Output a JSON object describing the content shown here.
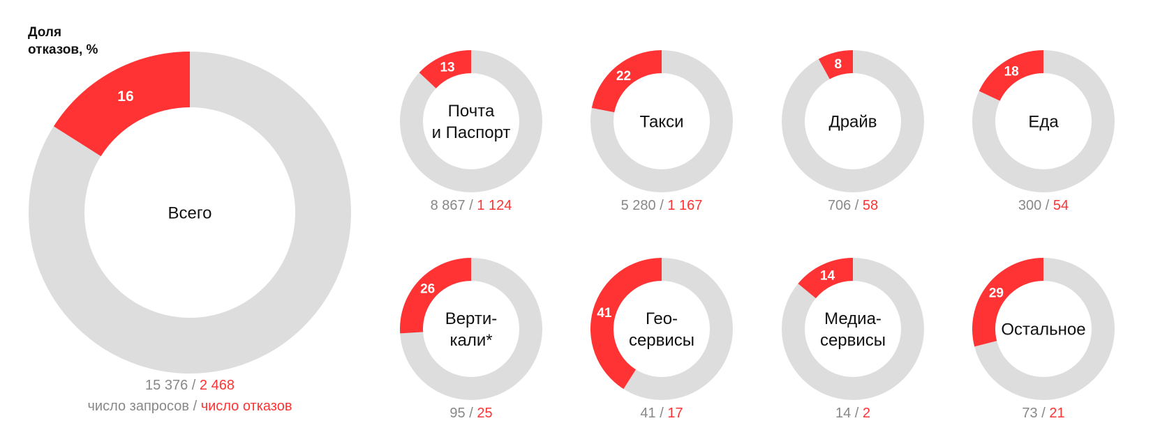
{
  "title": {
    "line1": "Доля",
    "line2": "отказов, %"
  },
  "legend": {
    "requests": "число запросов",
    "separator": " / ",
    "refusals": "число отказов"
  },
  "colors": {
    "segment": "#ff3333",
    "track": "#dddddd",
    "requests_text": "#888888",
    "refusals_text": "#ff3333"
  },
  "chart_data": {
    "type": "pie",
    "variant": "donut",
    "value_unit": "%",
    "main": {
      "label": [
        "Всего"
      ],
      "percent": 16,
      "requests": "15 376",
      "refusals": "2 468"
    },
    "services": [
      {
        "label": [
          "Почта",
          "и Паспорт"
        ],
        "percent": 13,
        "requests": "8 867",
        "refusals": "1 124"
      },
      {
        "label": [
          "Такси"
        ],
        "percent": 22,
        "requests": "5 280",
        "refusals": "1 167"
      },
      {
        "label": [
          "Драйв"
        ],
        "percent": 8,
        "requests": "706",
        "refusals": "58"
      },
      {
        "label": [
          "Еда"
        ],
        "percent": 18,
        "requests": "300",
        "refusals": "54"
      },
      {
        "label": [
          "Верти-",
          "кали*"
        ],
        "percent": 26,
        "requests": "95",
        "refusals": "25"
      },
      {
        "label": [
          "Гео-",
          "сервисы"
        ],
        "percent": 41,
        "requests": "41",
        "refusals": "17"
      },
      {
        "label": [
          "Медиа-",
          "сервисы"
        ],
        "percent": 14,
        "requests": "14",
        "refusals": "2"
      },
      {
        "label": [
          "Остальное"
        ],
        "percent": 29,
        "requests": "73",
        "refusals": "21"
      }
    ]
  }
}
